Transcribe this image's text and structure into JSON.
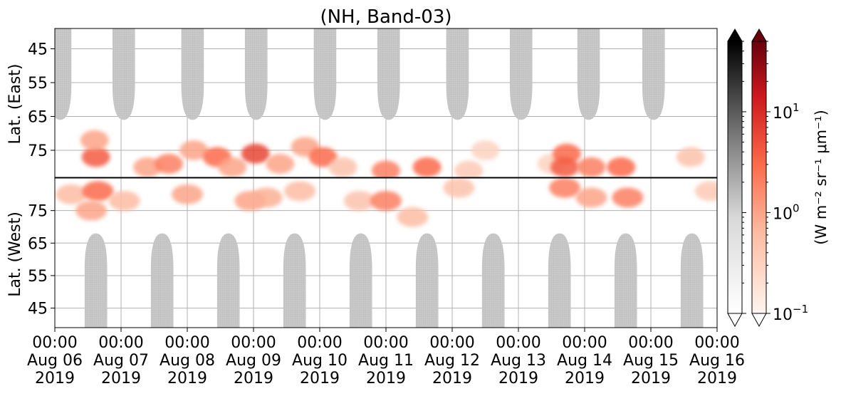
{
  "chart_data": {
    "type": "heatmap",
    "title": "(NH, Band-03)",
    "ylabel_top": "Lat. (East)",
    "ylabel_bottom": "Lat. (West)",
    "colorbar_label": "(W m⁻² sr⁻¹ μm⁻¹)",
    "colorbar_scale": "log",
    "colorbar_range": [
      0.1,
      50
    ],
    "colorbar_ticks": [
      {
        "value": 0.1,
        "base": "10",
        "exp": "−1"
      },
      {
        "value": 1,
        "base": "10",
        "exp": "0"
      },
      {
        "value": 10,
        "base": "10",
        "exp": "1"
      }
    ],
    "colormaps": {
      "night_cmap": "greys",
      "day_cmap": "reds",
      "grey_fill": "#c8c8c8",
      "red_strong": "#f46040",
      "red_light": "#fee0d2"
    },
    "x_range_days": [
      0,
      10
    ],
    "x_ticks": [
      {
        "time": "00:00",
        "date": "Aug 06",
        "year": "2019"
      },
      {
        "time": "00:00",
        "date": "Aug 07",
        "year": "2019"
      },
      {
        "time": "00:00",
        "date": "Aug 08",
        "year": "2019"
      },
      {
        "time": "00:00",
        "date": "Aug 09",
        "year": "2019"
      },
      {
        "time": "00:00",
        "date": "Aug 10",
        "year": "2019"
      },
      {
        "time": "00:00",
        "date": "Aug 11",
        "year": "2019"
      },
      {
        "time": "00:00",
        "date": "Aug 12",
        "year": "2019"
      },
      {
        "time": "00:00",
        "date": "Aug 13",
        "year": "2019"
      },
      {
        "time": "00:00",
        "date": "Aug 14",
        "year": "2019"
      },
      {
        "time": "00:00",
        "date": "Aug 15",
        "year": "2019"
      },
      {
        "time": "00:00",
        "date": "Aug 16",
        "year": "2019"
      }
    ],
    "east_panel": {
      "lat_range": [
        39,
        83
      ],
      "ticks": [
        45,
        55,
        65,
        75
      ]
    },
    "west_panel": {
      "lat_range": [
        39,
        85
      ],
      "ticks": [
        75,
        65,
        55,
        45
      ]
    },
    "grey_bands_east": [
      {
        "t": 0.08,
        "lat": 66
      },
      {
        "t": 1.04,
        "lat": 66
      },
      {
        "t": 2.08,
        "lat": 66
      },
      {
        "t": 3.04,
        "lat": 66
      },
      {
        "t": 4.08,
        "lat": 66
      },
      {
        "t": 5.04,
        "lat": 66
      },
      {
        "t": 6.08,
        "lat": 66
      },
      {
        "t": 7.04,
        "lat": 66
      },
      {
        "t": 8.06,
        "lat": 66
      },
      {
        "t": 9.04,
        "lat": 66
      }
    ],
    "grey_bands_west": [
      {
        "t": 0.62,
        "lat": 68
      },
      {
        "t": 1.62,
        "lat": 68
      },
      {
        "t": 2.62,
        "lat": 68
      },
      {
        "t": 3.62,
        "lat": 68
      },
      {
        "t": 4.62,
        "lat": 68
      },
      {
        "t": 5.62,
        "lat": 68
      },
      {
        "t": 6.62,
        "lat": 68
      },
      {
        "t": 7.62,
        "lat": 68
      },
      {
        "t": 8.62,
        "lat": 68
      },
      {
        "t": 9.62,
        "lat": 68
      }
    ],
    "aurora_east": [
      {
        "t": 0.62,
        "lat": 77,
        "value": 4
      },
      {
        "t": 0.6,
        "lat": 72,
        "value": 1
      },
      {
        "t": 1.4,
        "lat": 80,
        "value": 1
      },
      {
        "t": 1.72,
        "lat": 79,
        "value": 2
      },
      {
        "t": 2.1,
        "lat": 75,
        "value": 1
      },
      {
        "t": 2.45,
        "lat": 77,
        "value": 3
      },
      {
        "t": 2.68,
        "lat": 80,
        "value": 1
      },
      {
        "t": 3.03,
        "lat": 76,
        "value": 6
      },
      {
        "t": 3.4,
        "lat": 79,
        "value": 1
      },
      {
        "t": 3.78,
        "lat": 74,
        "value": 1
      },
      {
        "t": 4.05,
        "lat": 77,
        "value": 3
      },
      {
        "t": 4.35,
        "lat": 80,
        "value": 0.5
      },
      {
        "t": 5.0,
        "lat": 81,
        "value": 2
      },
      {
        "t": 5.62,
        "lat": 80,
        "value": 3
      },
      {
        "t": 6.25,
        "lat": 81,
        "value": 0.4
      },
      {
        "t": 6.5,
        "lat": 75,
        "value": 0.3
      },
      {
        "t": 7.5,
        "lat": 79,
        "value": 0.3
      },
      {
        "t": 7.73,
        "lat": 76,
        "value": 3
      },
      {
        "t": 7.7,
        "lat": 80,
        "value": 4
      },
      {
        "t": 8.1,
        "lat": 80,
        "value": 2
      },
      {
        "t": 8.55,
        "lat": 80,
        "value": 3
      },
      {
        "t": 9.6,
        "lat": 77,
        "value": 0.5
      }
    ],
    "aurora_west": [
      {
        "t": 0.25,
        "lat": 80,
        "value": 0.6
      },
      {
        "t": 0.65,
        "lat": 81,
        "value": 3
      },
      {
        "t": 0.55,
        "lat": 75,
        "value": 1
      },
      {
        "t": 1.05,
        "lat": 78,
        "value": 0.6
      },
      {
        "t": 2.0,
        "lat": 80,
        "value": 1
      },
      {
        "t": 2.95,
        "lat": 78,
        "value": 1
      },
      {
        "t": 3.2,
        "lat": 79,
        "value": 0.8
      },
      {
        "t": 3.7,
        "lat": 81,
        "value": 0.6
      },
      {
        "t": 4.6,
        "lat": 78,
        "value": 0.5
      },
      {
        "t": 5.0,
        "lat": 78,
        "value": 2
      },
      {
        "t": 5.4,
        "lat": 73,
        "value": 0.6
      },
      {
        "t": 6.1,
        "lat": 82,
        "value": 0.5
      },
      {
        "t": 7.7,
        "lat": 82,
        "value": 2
      },
      {
        "t": 8.1,
        "lat": 79,
        "value": 1
      },
      {
        "t": 8.65,
        "lat": 79,
        "value": 2
      },
      {
        "t": 9.9,
        "lat": 81,
        "value": 0.4
      }
    ]
  }
}
